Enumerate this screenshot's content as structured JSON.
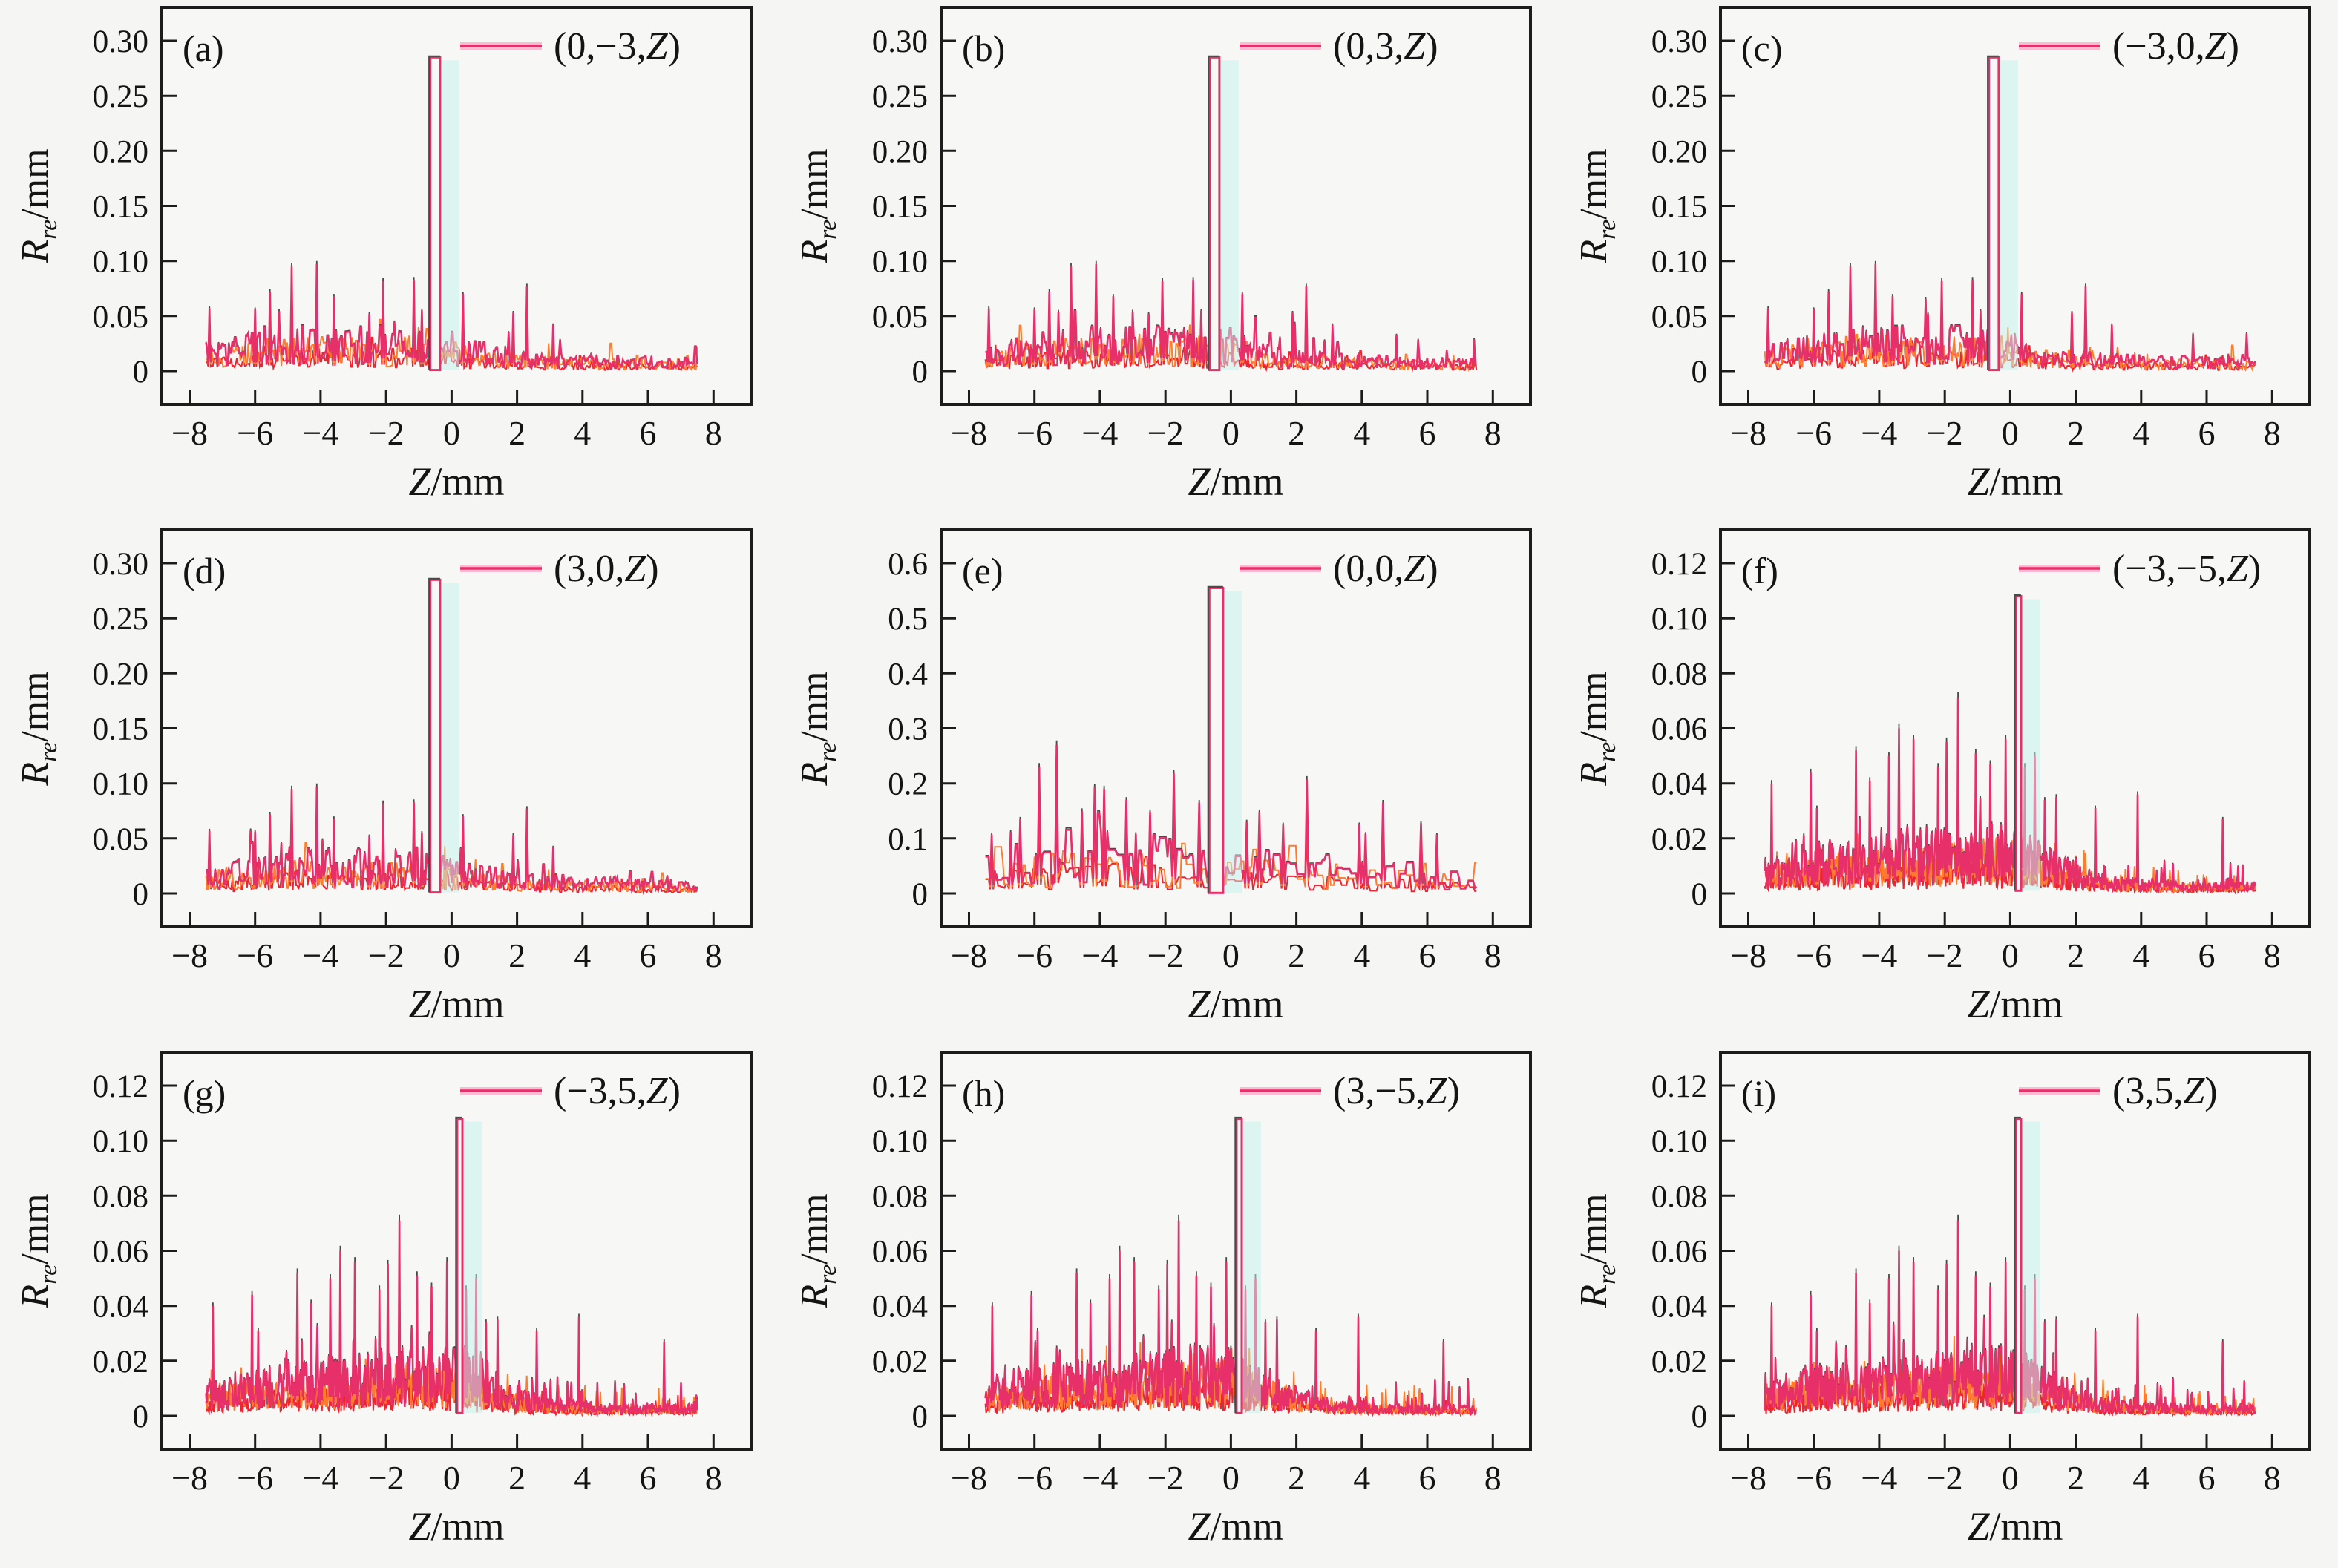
{
  "figure": {
    "background": "#f5f5f4",
    "panel_background": "#f7f7f6",
    "border_color": "#1c1c1c",
    "tick_color": "#1c1c1c",
    "text_color": "#141414",
    "series_color": "#e73069",
    "series_underlay_orange": "#ff7c2e",
    "series_underlay_red": "#ee2531",
    "series_outline_dark": "#4a4a4a",
    "legend_halo_pink": "#ffb9d2",
    "peak_shadow_cyan": "#c4f3ec",
    "xlabel_var": "Z",
    "xlabel_unit": "/mm",
    "ylabel_var": "R",
    "ylabel_sub": "re",
    "ylabel_unit": "/mm",
    "legend_var": "Z",
    "legend_close": ")",
    "x_axis": {
      "data_range": [
        -7.5,
        7.5
      ],
      "axis_range": [
        -8.85,
        9.15
      ],
      "major_ticks": [
        -8,
        -6,
        -4,
        -2,
        0,
        2,
        4,
        6,
        8
      ],
      "tick_labels": [
        "−8",
        "−6",
        "−4",
        "−2",
        "0",
        "2",
        "4",
        "6",
        "8"
      ]
    },
    "y_groups": {
      "g1": {
        "top_tick": 0.3,
        "tick_values": [
          0,
          0.05,
          0.1,
          0.15,
          0.2,
          0.25,
          0.3
        ],
        "tick_labels": [
          "0",
          "0.05",
          "0.10",
          "0.15",
          "0.20",
          "0.25",
          "0.30"
        ]
      },
      "g2": {
        "top_tick": 0.6,
        "tick_values": [
          0,
          0.1,
          0.2,
          0.3,
          0.4,
          0.5,
          0.6
        ],
        "tick_labels": [
          "0",
          "0.1",
          "0.2",
          "0.3",
          "0.4",
          "0.5",
          "0.6"
        ]
      },
      "g3": {
        "top_tick": 0.12,
        "tick_values": [
          0,
          0.02,
          0.04,
          0.06,
          0.08,
          0.1,
          0.12
        ],
        "tick_labels": [
          "0",
          "0.02",
          "0.04",
          "0.06",
          "0.08",
          "0.10",
          "0.12"
        ]
      }
    },
    "layers": [
      {
        "seed_offset": 13,
        "scale": 0.5,
        "color": "#ee2531",
        "width": 2.0
      },
      {
        "seed_offset": 7,
        "scale": 0.78,
        "color": "#ff7c2e",
        "width": 2.0
      },
      {
        "seed_offset": 0,
        "scale": 1.03,
        "color": "#4a4a4a",
        "width": 1.8
      },
      {
        "seed_offset": 0,
        "scale": 1.0,
        "color": "#e73069",
        "width": 2.6
      }
    ],
    "noise_profiles": {
      "g1": {
        "n": 430,
        "base": 0.005,
        "hold": 2,
        "spike_prob": 0.1,
        "spike_amp": 0.05,
        "clamp": 0.06,
        "envelopes": [
          [
            -4.5,
            2.6,
            0.022
          ],
          [
            -0.6,
            1.3,
            0.011
          ],
          [
            2.5,
            4.5,
            0.006
          ]
        ]
      },
      "g2": {
        "n": 310,
        "base": 0.014,
        "hold": 5,
        "spike_prob": 0.12,
        "spike_amp": 0.09,
        "clamp": 0.165,
        "envelopes": [
          [
            -4.6,
            2.3,
            0.07
          ],
          [
            0.6,
            2.4,
            0.032
          ],
          [
            4.8,
            2.5,
            0.02
          ]
        ]
      },
      "g3": {
        "n": 640,
        "base": 0.003,
        "hold": 1,
        "spike_prob": 0.12,
        "spike_amp": 0.026,
        "clamp": 0.04,
        "envelopes": [
          [
            -2.6,
            2.7,
            0.012
          ],
          [
            0,
            1.3,
            0.007
          ],
          [
            -6.2,
            1.1,
            0.005
          ]
        ]
      }
    }
  },
  "chart_data": [
    {
      "type": "line",
      "id": "a",
      "label": "(a)",
      "legend_prefix": "(0,−3,",
      "y_group": "g1",
      "seed": 3,
      "ylim": [
        0,
        0.3
      ],
      "xlim": [
        -8,
        8
      ],
      "main_peak": {
        "x": -0.5,
        "height": 0.285,
        "width": 0.3
      },
      "secondary_peaks": [
        [
          -4.1,
          0.097
        ],
        [
          -4.9,
          0.095
        ],
        [
          -2.1,
          0.082
        ],
        [
          -1.15,
          0.083
        ],
        [
          2.3,
          0.077
        ],
        [
          -5.55,
          0.072
        ],
        [
          -3.6,
          0.068
        ],
        [
          0.35,
          0.07
        ],
        [
          -6.0,
          0.056
        ],
        [
          1.9,
          0.053
        ],
        [
          -7.4,
          0.057
        ],
        [
          -2.5,
          0.052
        ],
        [
          3.1,
          0.042
        ],
        [
          -0.9,
          0.055
        ]
      ]
    },
    {
      "type": "line",
      "id": "b",
      "label": "(b)",
      "legend_prefix": "(0,3,",
      "y_group": "g1",
      "seed": 17,
      "ylim": [
        0,
        0.3
      ],
      "xlim": [
        -8,
        8
      ],
      "main_peak": {
        "x": -0.5,
        "height": 0.285,
        "width": 0.3
      },
      "secondary_peaks": [
        [
          -4.1,
          0.097
        ],
        [
          -4.9,
          0.095
        ],
        [
          -2.1,
          0.082
        ],
        [
          -1.15,
          0.083
        ],
        [
          2.3,
          0.077
        ],
        [
          -5.55,
          0.072
        ],
        [
          -3.6,
          0.068
        ],
        [
          0.35,
          0.07
        ],
        [
          -6.0,
          0.056
        ],
        [
          1.9,
          0.053
        ],
        [
          -7.4,
          0.057
        ],
        [
          -2.5,
          0.052
        ],
        [
          3.1,
          0.042
        ],
        [
          -0.9,
          0.055
        ]
      ]
    },
    {
      "type": "line",
      "id": "c",
      "label": "(c)",
      "legend_prefix": "(−3,0,",
      "y_group": "g1",
      "seed": 29,
      "ylim": [
        0,
        0.3
      ],
      "xlim": [
        -8,
        8
      ],
      "main_peak": {
        "x": -0.5,
        "height": 0.285,
        "width": 0.3
      },
      "secondary_peaks": [
        [
          -4.1,
          0.097
        ],
        [
          -4.9,
          0.095
        ],
        [
          -2.1,
          0.082
        ],
        [
          -1.15,
          0.083
        ],
        [
          2.3,
          0.077
        ],
        [
          -5.55,
          0.072
        ],
        [
          -3.6,
          0.068
        ],
        [
          0.35,
          0.07
        ],
        [
          -6.0,
          0.056
        ],
        [
          1.9,
          0.053
        ],
        [
          -7.4,
          0.057
        ],
        [
          -2.5,
          0.052
        ],
        [
          3.1,
          0.042
        ],
        [
          -0.9,
          0.055
        ]
      ]
    },
    {
      "type": "line",
      "id": "d",
      "label": "(d)",
      "legend_prefix": "(3,0,",
      "y_group": "g1",
      "seed": 41,
      "ylim": [
        0,
        0.3
      ],
      "xlim": [
        -8,
        8
      ],
      "main_peak": {
        "x": -0.5,
        "height": 0.285,
        "width": 0.3
      },
      "secondary_peaks": [
        [
          -4.1,
          0.097
        ],
        [
          -4.9,
          0.095
        ],
        [
          -2.1,
          0.082
        ],
        [
          -1.15,
          0.083
        ],
        [
          2.3,
          0.077
        ],
        [
          -5.55,
          0.072
        ],
        [
          -3.6,
          0.068
        ],
        [
          0.35,
          0.07
        ],
        [
          -6.0,
          0.056
        ],
        [
          1.9,
          0.053
        ],
        [
          -7.4,
          0.057
        ],
        [
          -2.5,
          0.052
        ],
        [
          3.1,
          0.042
        ],
        [
          -0.9,
          0.055
        ]
      ]
    },
    {
      "type": "line",
      "id": "e",
      "label": "(e)",
      "legend_prefix": "(0,0,",
      "y_group": "g2",
      "seed": 7,
      "ylim": [
        0,
        0.6
      ],
      "xlim": [
        -8,
        8
      ],
      "steps": true,
      "main_peak": {
        "x": -0.45,
        "height": 0.555,
        "width": 0.42
      },
      "secondary_peaks": [
        [
          -5.3,
          0.27
        ],
        [
          -5.85,
          0.23
        ],
        [
          -1.75,
          0.218
        ],
        [
          2.3,
          0.207
        ],
        [
          -4.15,
          0.193
        ],
        [
          -3.85,
          0.19
        ],
        [
          -3.2,
          0.17
        ],
        [
          -0.95,
          0.165
        ],
        [
          4.65,
          0.165
        ],
        [
          -4.55,
          0.15
        ],
        [
          -2.45,
          0.148
        ],
        [
          0.85,
          0.148
        ],
        [
          -6.45,
          0.135
        ],
        [
          0.5,
          0.13
        ],
        [
          5.8,
          0.128
        ],
        [
          3.9,
          0.125
        ],
        [
          1.6,
          0.125
        ],
        [
          -2.9,
          0.108
        ],
        [
          4.1,
          0.108
        ],
        [
          6.3,
          0.107
        ],
        [
          -7.3,
          0.107
        ],
        [
          -6.75,
          0.112
        ]
      ]
    },
    {
      "type": "line",
      "id": "f",
      "label": "(f)",
      "legend_prefix": "(−3,−5,",
      "y_group": "g3",
      "seed": 5,
      "ylim": [
        0,
        0.12
      ],
      "xlim": [
        -8,
        8
      ],
      "main_peak": {
        "x": 0.25,
        "height": 0.108,
        "width": 0.16
      },
      "secondary_peaks": [
        [
          -1.6,
          0.071
        ],
        [
          -3.4,
          0.06
        ],
        [
          -2.95,
          0.056
        ],
        [
          -1.95,
          0.055
        ],
        [
          -0.15,
          0.056
        ],
        [
          -4.7,
          0.052
        ],
        [
          -3.7,
          0.05
        ],
        [
          -1.05,
          0.051
        ],
        [
          0.75,
          0.05
        ],
        [
          -0.6,
          0.047
        ],
        [
          0.45,
          0.046
        ],
        [
          -2.2,
          0.046
        ],
        [
          -6.1,
          0.044
        ],
        [
          -4.3,
          0.041
        ],
        [
          -7.3,
          0.04
        ],
        [
          3.9,
          0.036
        ],
        [
          1.4,
          0.035
        ],
        [
          1.05,
          0.034
        ],
        [
          2.6,
          0.031
        ],
        [
          -5.9,
          0.031
        ],
        [
          6.5,
          0.027
        ]
      ]
    },
    {
      "type": "line",
      "id": "g",
      "label": "(g)",
      "legend_prefix": "(−3,5,",
      "y_group": "g3",
      "seed": 23,
      "ylim": [
        0,
        0.12
      ],
      "xlim": [
        -8,
        8
      ],
      "main_peak": {
        "x": 0.25,
        "height": 0.108,
        "width": 0.16
      },
      "secondary_peaks": [
        [
          -1.6,
          0.071
        ],
        [
          -3.4,
          0.06
        ],
        [
          -2.95,
          0.056
        ],
        [
          -1.95,
          0.055
        ],
        [
          -0.15,
          0.056
        ],
        [
          -4.7,
          0.052
        ],
        [
          -3.7,
          0.05
        ],
        [
          -1.05,
          0.051
        ],
        [
          0.75,
          0.05
        ],
        [
          -0.6,
          0.047
        ],
        [
          0.45,
          0.046
        ],
        [
          -2.2,
          0.046
        ],
        [
          -6.1,
          0.044
        ],
        [
          -4.3,
          0.041
        ],
        [
          -7.3,
          0.04
        ],
        [
          3.9,
          0.036
        ],
        [
          1.4,
          0.035
        ],
        [
          1.05,
          0.034
        ],
        [
          2.6,
          0.031
        ],
        [
          -5.9,
          0.031
        ],
        [
          6.5,
          0.027
        ]
      ]
    },
    {
      "type": "line",
      "id": "h",
      "label": "(h)",
      "legend_prefix": "(3,−5,",
      "y_group": "g3",
      "seed": 37,
      "ylim": [
        0,
        0.12
      ],
      "xlim": [
        -8,
        8
      ],
      "main_peak": {
        "x": 0.25,
        "height": 0.108,
        "width": 0.16
      },
      "secondary_peaks": [
        [
          -1.6,
          0.071
        ],
        [
          -3.4,
          0.06
        ],
        [
          -2.95,
          0.056
        ],
        [
          -1.95,
          0.055
        ],
        [
          -0.15,
          0.056
        ],
        [
          -4.7,
          0.052
        ],
        [
          -3.7,
          0.05
        ],
        [
          -1.05,
          0.051
        ],
        [
          0.75,
          0.05
        ],
        [
          -0.6,
          0.047
        ],
        [
          0.45,
          0.046
        ],
        [
          -2.2,
          0.046
        ],
        [
          -6.1,
          0.044
        ],
        [
          -4.3,
          0.041
        ],
        [
          -7.3,
          0.04
        ],
        [
          3.9,
          0.036
        ],
        [
          1.4,
          0.035
        ],
        [
          1.05,
          0.034
        ],
        [
          2.6,
          0.031
        ],
        [
          -5.9,
          0.031
        ],
        [
          6.5,
          0.027
        ]
      ]
    },
    {
      "type": "line",
      "id": "i",
      "label": "(i)",
      "legend_prefix": "(3,5,",
      "y_group": "g3",
      "seed": 53,
      "ylim": [
        0,
        0.12
      ],
      "xlim": [
        -8,
        8
      ],
      "main_peak": {
        "x": 0.25,
        "height": 0.108,
        "width": 0.16
      },
      "secondary_peaks": [
        [
          -1.6,
          0.071
        ],
        [
          -3.4,
          0.06
        ],
        [
          -2.95,
          0.056
        ],
        [
          -1.95,
          0.055
        ],
        [
          -0.15,
          0.056
        ],
        [
          -4.7,
          0.052
        ],
        [
          -3.7,
          0.05
        ],
        [
          -1.05,
          0.051
        ],
        [
          0.75,
          0.05
        ],
        [
          -0.6,
          0.047
        ],
        [
          0.45,
          0.046
        ],
        [
          -2.2,
          0.046
        ],
        [
          -6.1,
          0.044
        ],
        [
          -4.3,
          0.041
        ],
        [
          -7.3,
          0.04
        ],
        [
          3.9,
          0.036
        ],
        [
          1.4,
          0.035
        ],
        [
          1.05,
          0.034
        ],
        [
          2.6,
          0.031
        ],
        [
          -5.9,
          0.031
        ],
        [
          6.5,
          0.027
        ]
      ]
    }
  ]
}
